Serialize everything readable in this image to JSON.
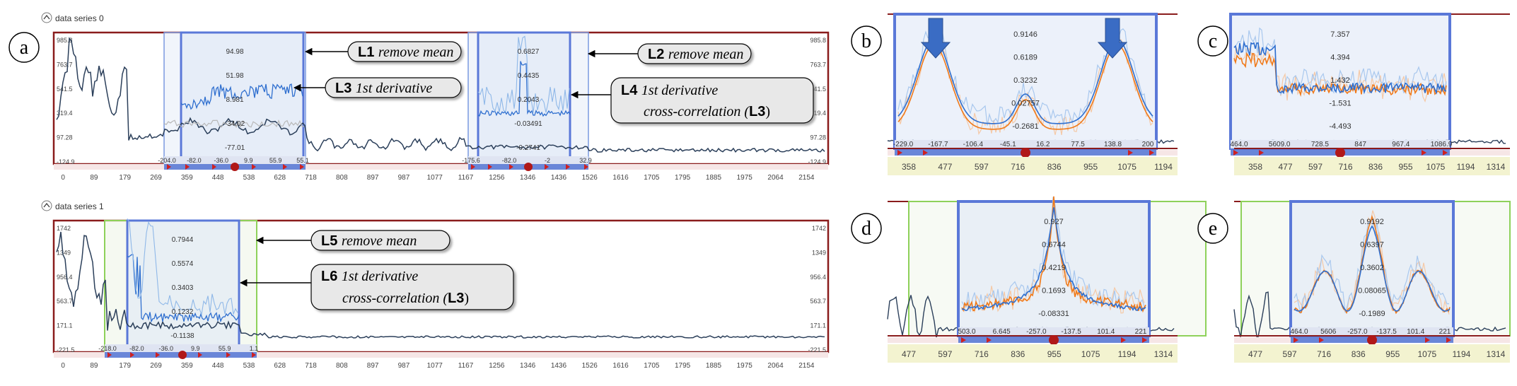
{
  "panel_letters": [
    "a",
    "b",
    "c",
    "d",
    "e"
  ],
  "series_headers": [
    "data series 0",
    "data series 1"
  ],
  "left_x_ticks": [
    "0",
    "89",
    "179",
    "269",
    "359",
    "448",
    "538",
    "628",
    "718",
    "808",
    "897",
    "987",
    "1077",
    "1167",
    "1256",
    "1346",
    "1436",
    "1526",
    "1616",
    "1705",
    "1795",
    "1885",
    "1975",
    "2064",
    "2154"
  ],
  "series0_y_ticks": [
    "985.8",
    "763.7",
    "541.5",
    "319.4",
    "97.28",
    "-124.9"
  ],
  "series1_y_ticks": [
    "1742",
    "1349",
    "956.4",
    "563.7",
    "171.1",
    "-221.5"
  ],
  "callouts_top": [
    {
      "code": "L1",
      "text": "remove mean"
    },
    {
      "code": "L2",
      "text": "remove mean"
    },
    {
      "code": "L3",
      "text": "1st derivative"
    },
    {
      "code": "L4",
      "line1": "1st derivative",
      "line2": "cross-correlation (",
      "ref": "L3",
      "close": ")"
    }
  ],
  "callouts_bottom": [
    {
      "code": "L5",
      "text": "remove mean"
    },
    {
      "code": "L6",
      "line1": "1st derivative",
      "line2": "cross-correlation (",
      "ref": "L3",
      "close": ")"
    }
  ],
  "sel0a_values": [
    "94.98",
    "51.98",
    "8.981",
    "-34.02",
    "-77.01"
  ],
  "sel0a_ticks": [
    "-204.0",
    "-82.0",
    "-36.0",
    "9.9",
    "55.9",
    "55.1"
  ],
  "sel0b_values": [
    "0.6827",
    "0.4435",
    "0.2043",
    "-0.03491",
    "-0.2741"
  ],
  "sel0b_ticks": [
    "-175.6",
    "-82.0",
    "-2",
    "32.9"
  ],
  "sel1_values": [
    "0.7944",
    "0.5574",
    "0.3403",
    "0.1232",
    "-0.1138"
  ],
  "sel1_ticks": [
    "-218.0",
    "-82.0",
    "-36.0",
    "9.9",
    "55.9",
    "1.1"
  ],
  "b_values": [
    "0.9146",
    "0.6189",
    "0.3232",
    "0.02757",
    "-0.2681"
  ],
  "b_sel_ticks": [
    "-229.0",
    "-167.7",
    "-106.4",
    "-45.1",
    "16.2",
    "77.5",
    "138.8",
    "200"
  ],
  "b_x_ticks": [
    "358",
    "477",
    "597",
    "716",
    "836",
    "955",
    "1075",
    "1194"
  ],
  "c_values": [
    "7.357",
    "4.394",
    "1.432",
    "-1.531",
    "-4.493"
  ],
  "c_sel_ticks": [
    "464.0",
    "5609.0",
    "728.5",
    "847",
    "967.4",
    "1086.9"
  ],
  "c_x_ticks": [
    "358",
    "477",
    "597",
    "716",
    "836",
    "955",
    "1075",
    "1194",
    "1314"
  ],
  "d_values": [
    "0.927",
    "0.6744",
    "0.4219",
    "0.1693",
    "-0.08331"
  ],
  "d_sel_ticks": [
    "503.0",
    "6.645",
    "-257.0",
    "-137.5",
    "101.4",
    "221"
  ],
  "d_x_ticks": [
    "477",
    "597",
    "716",
    "836",
    "955",
    "1075",
    "1194",
    "1314"
  ],
  "e_values": [
    "0.9192",
    "0.6397",
    "0.3602",
    "0.08065",
    "-0.1989"
  ],
  "e_sel_ticks": [
    "464.0",
    "5606",
    "-257.0",
    "-137.5",
    "101.4",
    "221"
  ],
  "e_x_ticks": [
    "477",
    "597",
    "716",
    "836",
    "955",
    "1075",
    "1194",
    "1314"
  ],
  "colors": {
    "blue": "#2f6fcf",
    "light_blue": "#8fb8e8",
    "dark": "#2b3f5a",
    "orange": "#f07a1a",
    "sel_border": "#5a78d8",
    "green": "#8ed15a",
    "frame": "#8a1c1c",
    "axis_bg": "#f3f3d0"
  }
}
